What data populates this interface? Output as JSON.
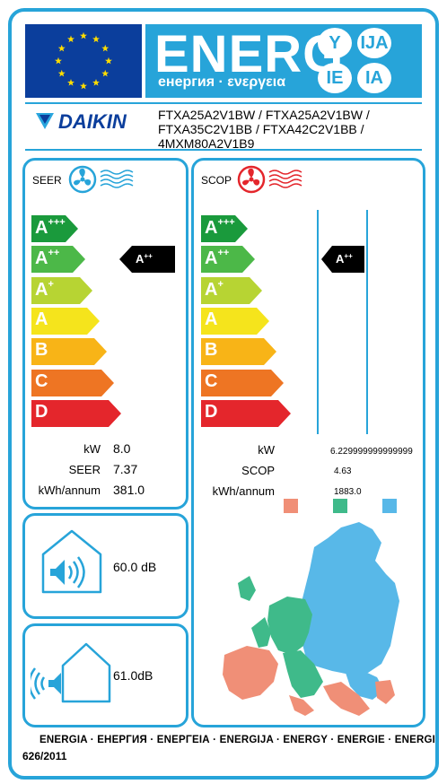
{
  "header": {
    "energ_word": "ENERG",
    "energ_subtitle": "енергия · ενεργεια",
    "bubbles": [
      "Y",
      "IJA",
      "IE",
      "IA"
    ]
  },
  "brand": "DAIKIN",
  "models": [
    "FTXA25A2V1BW / FTXA25A2V1BW /",
    "FTXA35C2V1BB / FTXA42C2V1BB /",
    "4MXM80A2V1B9"
  ],
  "classes": [
    {
      "letter": "A",
      "sup": "+++",
      "color": "#1a9a3c"
    },
    {
      "letter": "A",
      "sup": "++",
      "color": "#4cb848"
    },
    {
      "letter": "A",
      "sup": "+",
      "color": "#b7d433"
    },
    {
      "letter": "A",
      "sup": "",
      "color": "#f5e41c"
    },
    {
      "letter": "B",
      "sup": "",
      "color": "#f8b417"
    },
    {
      "letter": "C",
      "sup": "",
      "color": "#ee7523"
    },
    {
      "letter": "D",
      "sup": "",
      "color": "#e4262c"
    }
  ],
  "cooling": {
    "label": "SEER",
    "rating": {
      "letter": "A",
      "sup": "++"
    },
    "kw_label": "kW",
    "kw_value": "8.0",
    "seer_label": "SEER",
    "seer_value": "7.37",
    "kwh_label": "kWh/annum",
    "kwh_value": "381.0"
  },
  "heating": {
    "label": "SCOP",
    "rating": {
      "letter": "A",
      "sup": "++"
    },
    "kw_label": "kW",
    "kw_value": "6.229999999999999",
    "scop_label": "SCOP",
    "scop_value": "4.63",
    "kwh_label": "kWh/annum",
    "kwh_value": "1883.0"
  },
  "zones": {
    "warm": "#f08f77",
    "average": "#3fba8a",
    "cold": "#58b8e8"
  },
  "noise": {
    "indoor": "60.0 dB",
    "outdoor": "61.0dB"
  },
  "footer": {
    "languages": "ENERGIA · ЕНЕРГИЯ · ΕΝΕΡΓΕΙΑ · ENERGIJA · ENERGY · ENERGIE · ENERGI",
    "regulation": "626/2011"
  }
}
